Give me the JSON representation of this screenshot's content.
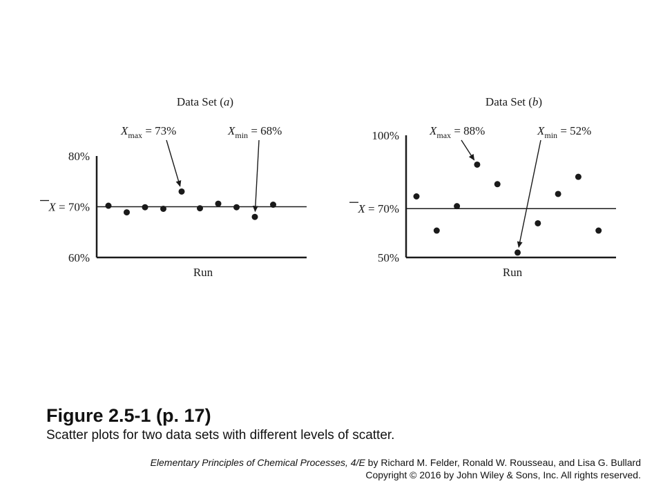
{
  "chart_data": [
    {
      "type": "scatter",
      "title": "Data Set (a)",
      "title_main": "Data Set (",
      "title_letter": "a",
      "title_close": ")",
      "xlabel": "Run",
      "ylabel": "",
      "ylim": [
        60,
        80
      ],
      "yticks": [
        {
          "value": 80,
          "label": "80%"
        },
        {
          "value": 70,
          "label": "= 70%"
        },
        {
          "value": 60,
          "label": "60%"
        }
      ],
      "mean_symbol": "X",
      "mean_value": 70,
      "x": [
        1,
        2,
        3,
        4,
        5,
        6,
        7,
        8,
        9,
        10
      ],
      "y": [
        70.2,
        68.9,
        69.9,
        69.6,
        73,
        69.7,
        70.6,
        69.9,
        68,
        70.4
      ],
      "annotations": [
        {
          "symbol": "X",
          "subscript": "max",
          "text": " = 73%",
          "target_index": 4
        },
        {
          "symbol": "X",
          "subscript": "min",
          "text": " = 68%",
          "target_index": 8
        }
      ],
      "grid": false,
      "color": "#1a1a1a"
    },
    {
      "type": "scatter",
      "title": "Data Set (b)",
      "title_main": "Data Set (",
      "title_letter": "b",
      "title_close": ")",
      "xlabel": "Run",
      "ylabel": "",
      "ylim": [
        50,
        100
      ],
      "yticks": [
        {
          "value": 100,
          "label": "100%"
        },
        {
          "value": 70,
          "label": "= 70%"
        },
        {
          "value": 50,
          "label": "50%"
        }
      ],
      "mean_symbol": "X",
      "mean_value": 70,
      "x": [
        1,
        2,
        3,
        4,
        5,
        6,
        7,
        8,
        9,
        10
      ],
      "y": [
        75,
        61,
        71,
        88,
        80,
        52,
        64,
        76,
        83,
        61
      ],
      "annotations": [
        {
          "symbol": "X",
          "subscript": "max",
          "text": " = 88%",
          "target_index": 3
        },
        {
          "symbol": "X",
          "subscript": "min",
          "text": " = 52%",
          "target_index": 5
        }
      ],
      "grid": false,
      "color": "#1a1a1a"
    }
  ],
  "figure": {
    "title": "Figure 2.5-1  (p. 17)",
    "subtitle": "Scatter plots for two data sets with different levels of scatter."
  },
  "credit": {
    "book": "Elementary Principles of Chemical Processes, 4/E",
    "authors": " by  Richard M. Felder, Ronald W. Rousseau, and Lisa G. Bullard",
    "copyright": "Copyright © 2016 by John Wiley & Sons, Inc.  All rights reserved."
  }
}
